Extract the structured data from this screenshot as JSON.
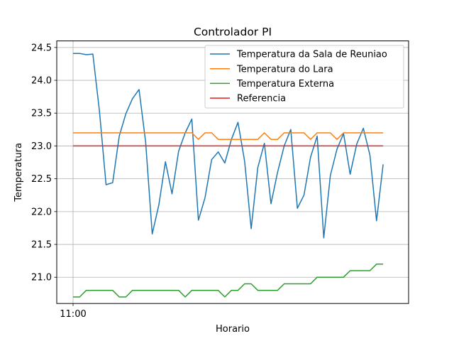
{
  "chart_data": {
    "type": "line",
    "title": "Controlador PI",
    "xlabel": "Horario",
    "ylabel": "Temperatura",
    "x_tick_labels": [
      "11:00"
    ],
    "ylim": [
      20.6,
      24.6
    ],
    "y_ticks": [
      "21.0",
      "21.5",
      "22.0",
      "22.5",
      "23.0",
      "23.5",
      "24.0",
      "24.5"
    ],
    "grid": true,
    "legend_position": "top-right",
    "series": [
      {
        "name": "Temperatura da Sala de Reuniao",
        "color": "#1f77b4",
        "values": [
          24.41,
          24.41,
          24.39,
          24.4,
          23.53,
          22.41,
          22.44,
          23.15,
          23.49,
          23.72,
          23.86,
          23.06,
          21.66,
          22.1,
          22.76,
          22.27,
          22.92,
          23.2,
          23.41,
          21.87,
          22.21,
          22.79,
          22.91,
          22.74,
          23.1,
          23.36,
          22.77,
          21.74,
          22.67,
          23.04,
          22.12,
          22.6,
          23.0,
          23.25,
          22.05,
          22.25,
          22.83,
          23.15,
          21.6,
          22.55,
          22.95,
          23.19,
          22.57,
          23.03,
          23.27,
          22.86,
          21.86,
          22.72
        ]
      },
      {
        "name": "Temperatura do Lara",
        "color": "#ff7f0e",
        "values": [
          23.2,
          23.2,
          23.2,
          23.2,
          23.2,
          23.2,
          23.2,
          23.2,
          23.2,
          23.2,
          23.2,
          23.2,
          23.2,
          23.2,
          23.2,
          23.2,
          23.2,
          23.2,
          23.2,
          23.1,
          23.2,
          23.2,
          23.1,
          23.1,
          23.1,
          23.1,
          23.1,
          23.1,
          23.1,
          23.2,
          23.1,
          23.1,
          23.2,
          23.2,
          23.2,
          23.2,
          23.1,
          23.2,
          23.2,
          23.2,
          23.1,
          23.2,
          23.2,
          23.2,
          23.2,
          23.2,
          23.2,
          23.2
        ]
      },
      {
        "name": "Temperatura Externa",
        "color": "#2ca02c",
        "values": [
          20.7,
          20.7,
          20.8,
          20.8,
          20.8,
          20.8,
          20.8,
          20.7,
          20.7,
          20.8,
          20.8,
          20.8,
          20.8,
          20.8,
          20.8,
          20.8,
          20.8,
          20.7,
          20.8,
          20.8,
          20.8,
          20.8,
          20.8,
          20.7,
          20.8,
          20.8,
          20.9,
          20.9,
          20.8,
          20.8,
          20.8,
          20.8,
          20.9,
          20.9,
          20.9,
          20.9,
          20.9,
          21.0,
          21.0,
          21.0,
          21.0,
          21.0,
          21.1,
          21.1,
          21.1,
          21.1,
          21.2,
          21.2
        ]
      },
      {
        "name": "Referencia",
        "color": "#d62728",
        "values": [
          23.0,
          23.0,
          23.0,
          23.0,
          23.0,
          23.0,
          23.0,
          23.0,
          23.0,
          23.0,
          23.0,
          23.0,
          23.0,
          23.0,
          23.0,
          23.0,
          23.0,
          23.0,
          23.0,
          23.0,
          23.0,
          23.0,
          23.0,
          23.0,
          23.0,
          23.0,
          23.0,
          23.0,
          23.0,
          23.0,
          23.0,
          23.0,
          23.0,
          23.0,
          23.0,
          23.0,
          23.0,
          23.0,
          23.0,
          23.0,
          23.0,
          23.0,
          23.0,
          23.0,
          23.0,
          23.0,
          23.0,
          23.0
        ]
      }
    ]
  }
}
